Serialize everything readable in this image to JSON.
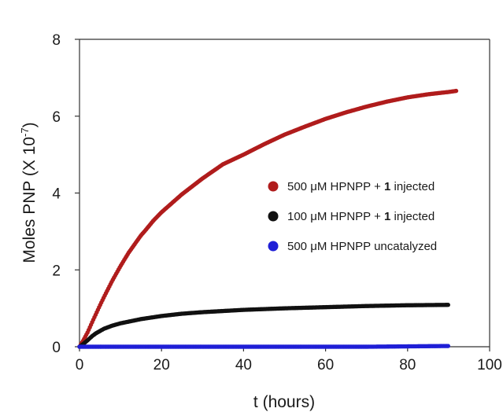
{
  "chart_data": {
    "type": "scatter",
    "title": "",
    "xlabel": "t (hours)",
    "ylabel_main": "Moles PNP (X 10",
    "ylabel_sup": "-7",
    "ylabel_end": ")",
    "xlim": [
      0,
      100
    ],
    "ylim": [
      0,
      8
    ],
    "xticks": [
      0,
      20,
      40,
      60,
      80,
      100
    ],
    "yticks": [
      0,
      2,
      4,
      6,
      8
    ],
    "grid": false,
    "legend_position": "right-center",
    "series": [
      {
        "name_prefix": "500 μM HPNPP + ",
        "name_bold": "1",
        "name_suffix": " injected",
        "color": "#b01c1c",
        "x": [
          0,
          1,
          2,
          3,
          4,
          5,
          6,
          8,
          10,
          12,
          14,
          15,
          16,
          18,
          20,
          25,
          30,
          35,
          40,
          45,
          50,
          55,
          60,
          65,
          70,
          75,
          80,
          85,
          90,
          92
        ],
        "y": [
          0,
          0.18,
          0.38,
          0.62,
          0.85,
          1.08,
          1.3,
          1.72,
          2.1,
          2.45,
          2.75,
          2.9,
          3.02,
          3.28,
          3.5,
          3.97,
          4.38,
          4.75,
          5.0,
          5.27,
          5.52,
          5.73,
          5.93,
          6.1,
          6.25,
          6.38,
          6.49,
          6.57,
          6.63,
          6.66
        ]
      },
      {
        "name_prefix": "100 μM HPNPP + ",
        "name_bold": "1",
        "name_suffix": " injected",
        "color": "#111111",
        "x": [
          0,
          1,
          2,
          3,
          4,
          6,
          8,
          10,
          15,
          20,
          25,
          30,
          40,
          50,
          60,
          70,
          80,
          90
        ],
        "y": [
          0,
          0.08,
          0.17,
          0.27,
          0.35,
          0.47,
          0.55,
          0.61,
          0.72,
          0.8,
          0.86,
          0.9,
          0.96,
          1.0,
          1.03,
          1.06,
          1.08,
          1.09
        ]
      },
      {
        "name_prefix": "500 μM HPNPP uncatalyzed",
        "name_bold": "",
        "name_suffix": "",
        "color": "#1f1fd6",
        "x": [
          0,
          10,
          20,
          30,
          40,
          50,
          60,
          70,
          80,
          90
        ],
        "y": [
          0,
          0,
          0,
          0,
          0,
          0,
          0,
          0,
          0.01,
          0.02
        ]
      }
    ]
  }
}
